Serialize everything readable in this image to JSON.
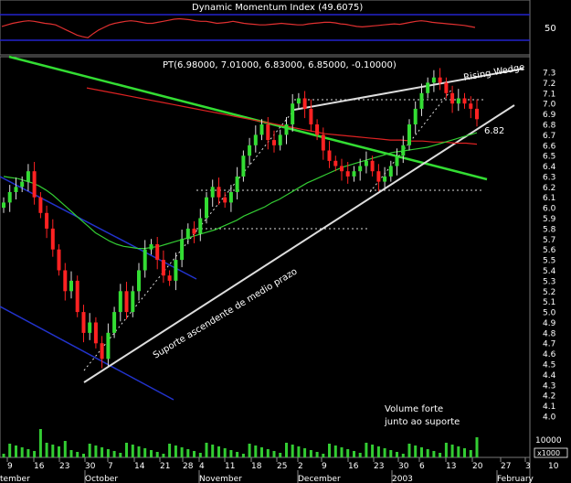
{
  "chart_data": [
    {
      "type": "line",
      "title": "Dynamic Momentum Index (49.6075)",
      "series": [],
      "ylim": [
        0,
        100
      ],
      "y_ticks": [
        50
      ],
      "values": [
        52,
        55,
        58,
        60,
        62,
        63,
        62,
        60,
        58,
        57,
        55,
        50,
        45,
        40,
        35,
        32,
        30,
        38,
        45,
        50,
        55,
        58,
        60,
        62,
        63,
        62,
        60,
        58,
        58,
        60,
        62,
        64,
        66,
        67,
        66,
        65,
        63,
        62,
        62,
        60,
        58,
        59,
        60,
        62,
        60,
        58,
        57,
        56,
        55,
        55,
        56,
        57,
        58,
        57,
        56,
        55,
        55,
        57,
        58,
        59,
        60,
        60,
        59,
        57,
        56,
        54,
        52,
        51,
        52,
        53,
        54,
        55,
        56,
        57,
        56,
        58,
        60,
        62,
        63,
        62,
        60,
        59,
        58,
        57,
        56,
        55,
        54,
        52,
        50
      ]
    },
    {
      "type": "candlestick",
      "title": "PT(6.98000, 7.01000, 6.83000, 6.85000, -0.10000)",
      "ylim": [
        4.0,
        7.4
      ],
      "y_ticks": [
        4.0,
        4.1,
        4.2,
        4.3,
        4.4,
        4.5,
        4.6,
        4.7,
        4.8,
        4.9,
        5.0,
        5.1,
        5.2,
        5.3,
        5.4,
        5.5,
        5.6,
        5.7,
        5.8,
        5.9,
        6.0,
        6.1,
        6.2,
        6.3,
        6.4,
        6.5,
        6.6,
        6.7,
        6.8,
        6.9,
        7.0,
        7.1,
        7.2,
        7.3
      ],
      "x_ticks": [
        "9",
        "16",
        "23",
        "30",
        "7",
        "14",
        "21",
        "28",
        "4",
        "11",
        "18",
        "25",
        "2",
        "9",
        "16",
        "23",
        "30",
        "6",
        "13",
        "20",
        "27",
        "3",
        "10"
      ],
      "months": [
        "tember",
        "October",
        "November",
        "December",
        "2003",
        "February"
      ],
      "volume_unit": "x1000",
      "volume_ticks": [
        10000
      ],
      "annotations": [
        "Rising Wedge",
        "6.82",
        "Suporte ascendente de medio prazo",
        "Volume forte",
        "junto ao suporte"
      ],
      "close": [
        6.05,
        6.15,
        6.2,
        6.25,
        6.35,
        6.1,
        5.95,
        5.8,
        5.6,
        5.4,
        5.2,
        5.3,
        5.0,
        4.8,
        4.9,
        4.7,
        4.55,
        4.8,
        5.0,
        5.2,
        5.0,
        5.2,
        5.4,
        5.6,
        5.65,
        5.5,
        5.35,
        5.3,
        5.5,
        5.7,
        5.8,
        5.75,
        5.9,
        6.1,
        6.2,
        6.1,
        6.05,
        6.15,
        6.3,
        6.5,
        6.6,
        6.7,
        6.8,
        6.65,
        6.6,
        6.7,
        6.8,
        7.0,
        7.05,
        6.95,
        6.8,
        6.7,
        6.55,
        6.45,
        6.4,
        6.35,
        6.3,
        6.35,
        6.4,
        6.45,
        6.35,
        6.25,
        6.3,
        6.4,
        6.5,
        6.6,
        6.8,
        6.95,
        7.1,
        7.2,
        7.25,
        7.2,
        7.1,
        7.0,
        7.05,
        7.0,
        6.95,
        6.85
      ],
      "ma_short": [
        6.3,
        6.29,
        6.28,
        6.26,
        6.24,
        6.21,
        6.17,
        6.12,
        6.06,
        6.0,
        5.94,
        5.88,
        5.82,
        5.76,
        5.72,
        5.68,
        5.65,
        5.63,
        5.62,
        5.61,
        5.61,
        5.62,
        5.63,
        5.65,
        5.67,
        5.69,
        5.71,
        5.73,
        5.75,
        5.77,
        5.79,
        5.82,
        5.85,
        5.88,
        5.92,
        5.95,
        5.98,
        6.01,
        6.05,
        6.08,
        6.12,
        6.16,
        6.2,
        6.24,
        6.27,
        6.3,
        6.33,
        6.36,
        6.39,
        6.41,
        6.43,
        6.45,
        6.47,
        6.49,
        6.51,
        6.53,
        6.54,
        6.55,
        6.56,
        6.57,
        6.58,
        6.6,
        6.62,
        6.64,
        6.66,
        6.68,
        6.7,
        6.72
      ],
      "ma_long": [
        7.15,
        7.13,
        7.11,
        7.09,
        7.07,
        7.05,
        7.03,
        7.01,
        6.99,
        6.97,
        6.95,
        6.93,
        6.91,
        6.89,
        6.87,
        6.85,
        6.83,
        6.81,
        6.79,
        6.77,
        6.75,
        6.73,
        6.71,
        6.7,
        6.69,
        6.68,
        6.67,
        6.66,
        6.65,
        6.65,
        6.64,
        6.64,
        6.63,
        6.63,
        6.62,
        6.62,
        6.61
      ]
    }
  ]
}
